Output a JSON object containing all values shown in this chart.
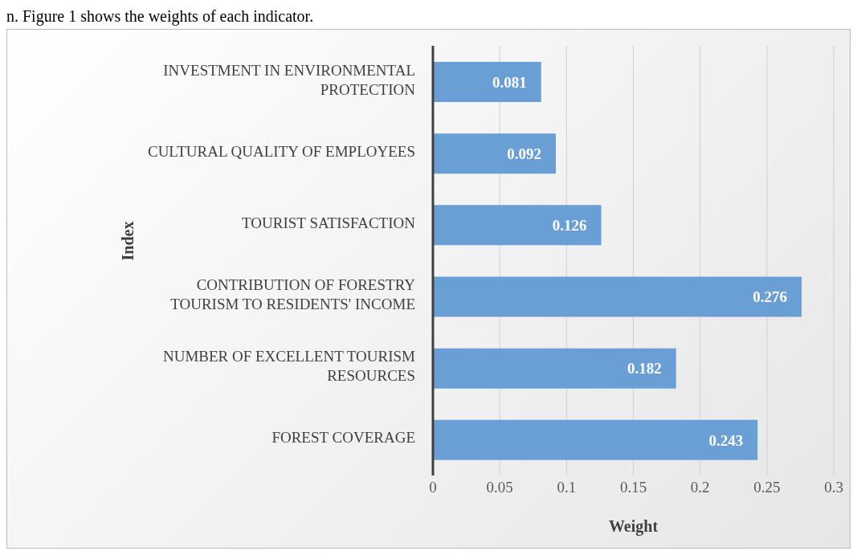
{
  "chart_data": {
    "type": "bar",
    "orientation": "horizontal",
    "xlabel": "Weight",
    "ylabel": "Index",
    "annotations": [
      "n. Figure 1 shows the weights of each indicator."
    ],
    "categories": [
      "INVESTMENT IN ENVIRONMENTAL PROTECTION",
      "CULTURAL QUALITY OF EMPLOYEES",
      "TOURIST SATISFACTION",
      "CONTRIBUTION OF FORESTRY TOURISM TO RESIDENTS' INCOME",
      "NUMBER OF EXCELLENT TOURISM RESOURCES",
      "FOREST COVERAGE"
    ],
    "values": [
      0.081,
      0.092,
      0.126,
      0.276,
      0.182,
      0.243
    ],
    "color": "#6a9fd6",
    "data_labels": true,
    "grid": "x",
    "xlim": [
      0,
      0.3
    ],
    "xticks": [
      0,
      0.05,
      0.1,
      0.15,
      0.2,
      0.25,
      0.3
    ]
  }
}
